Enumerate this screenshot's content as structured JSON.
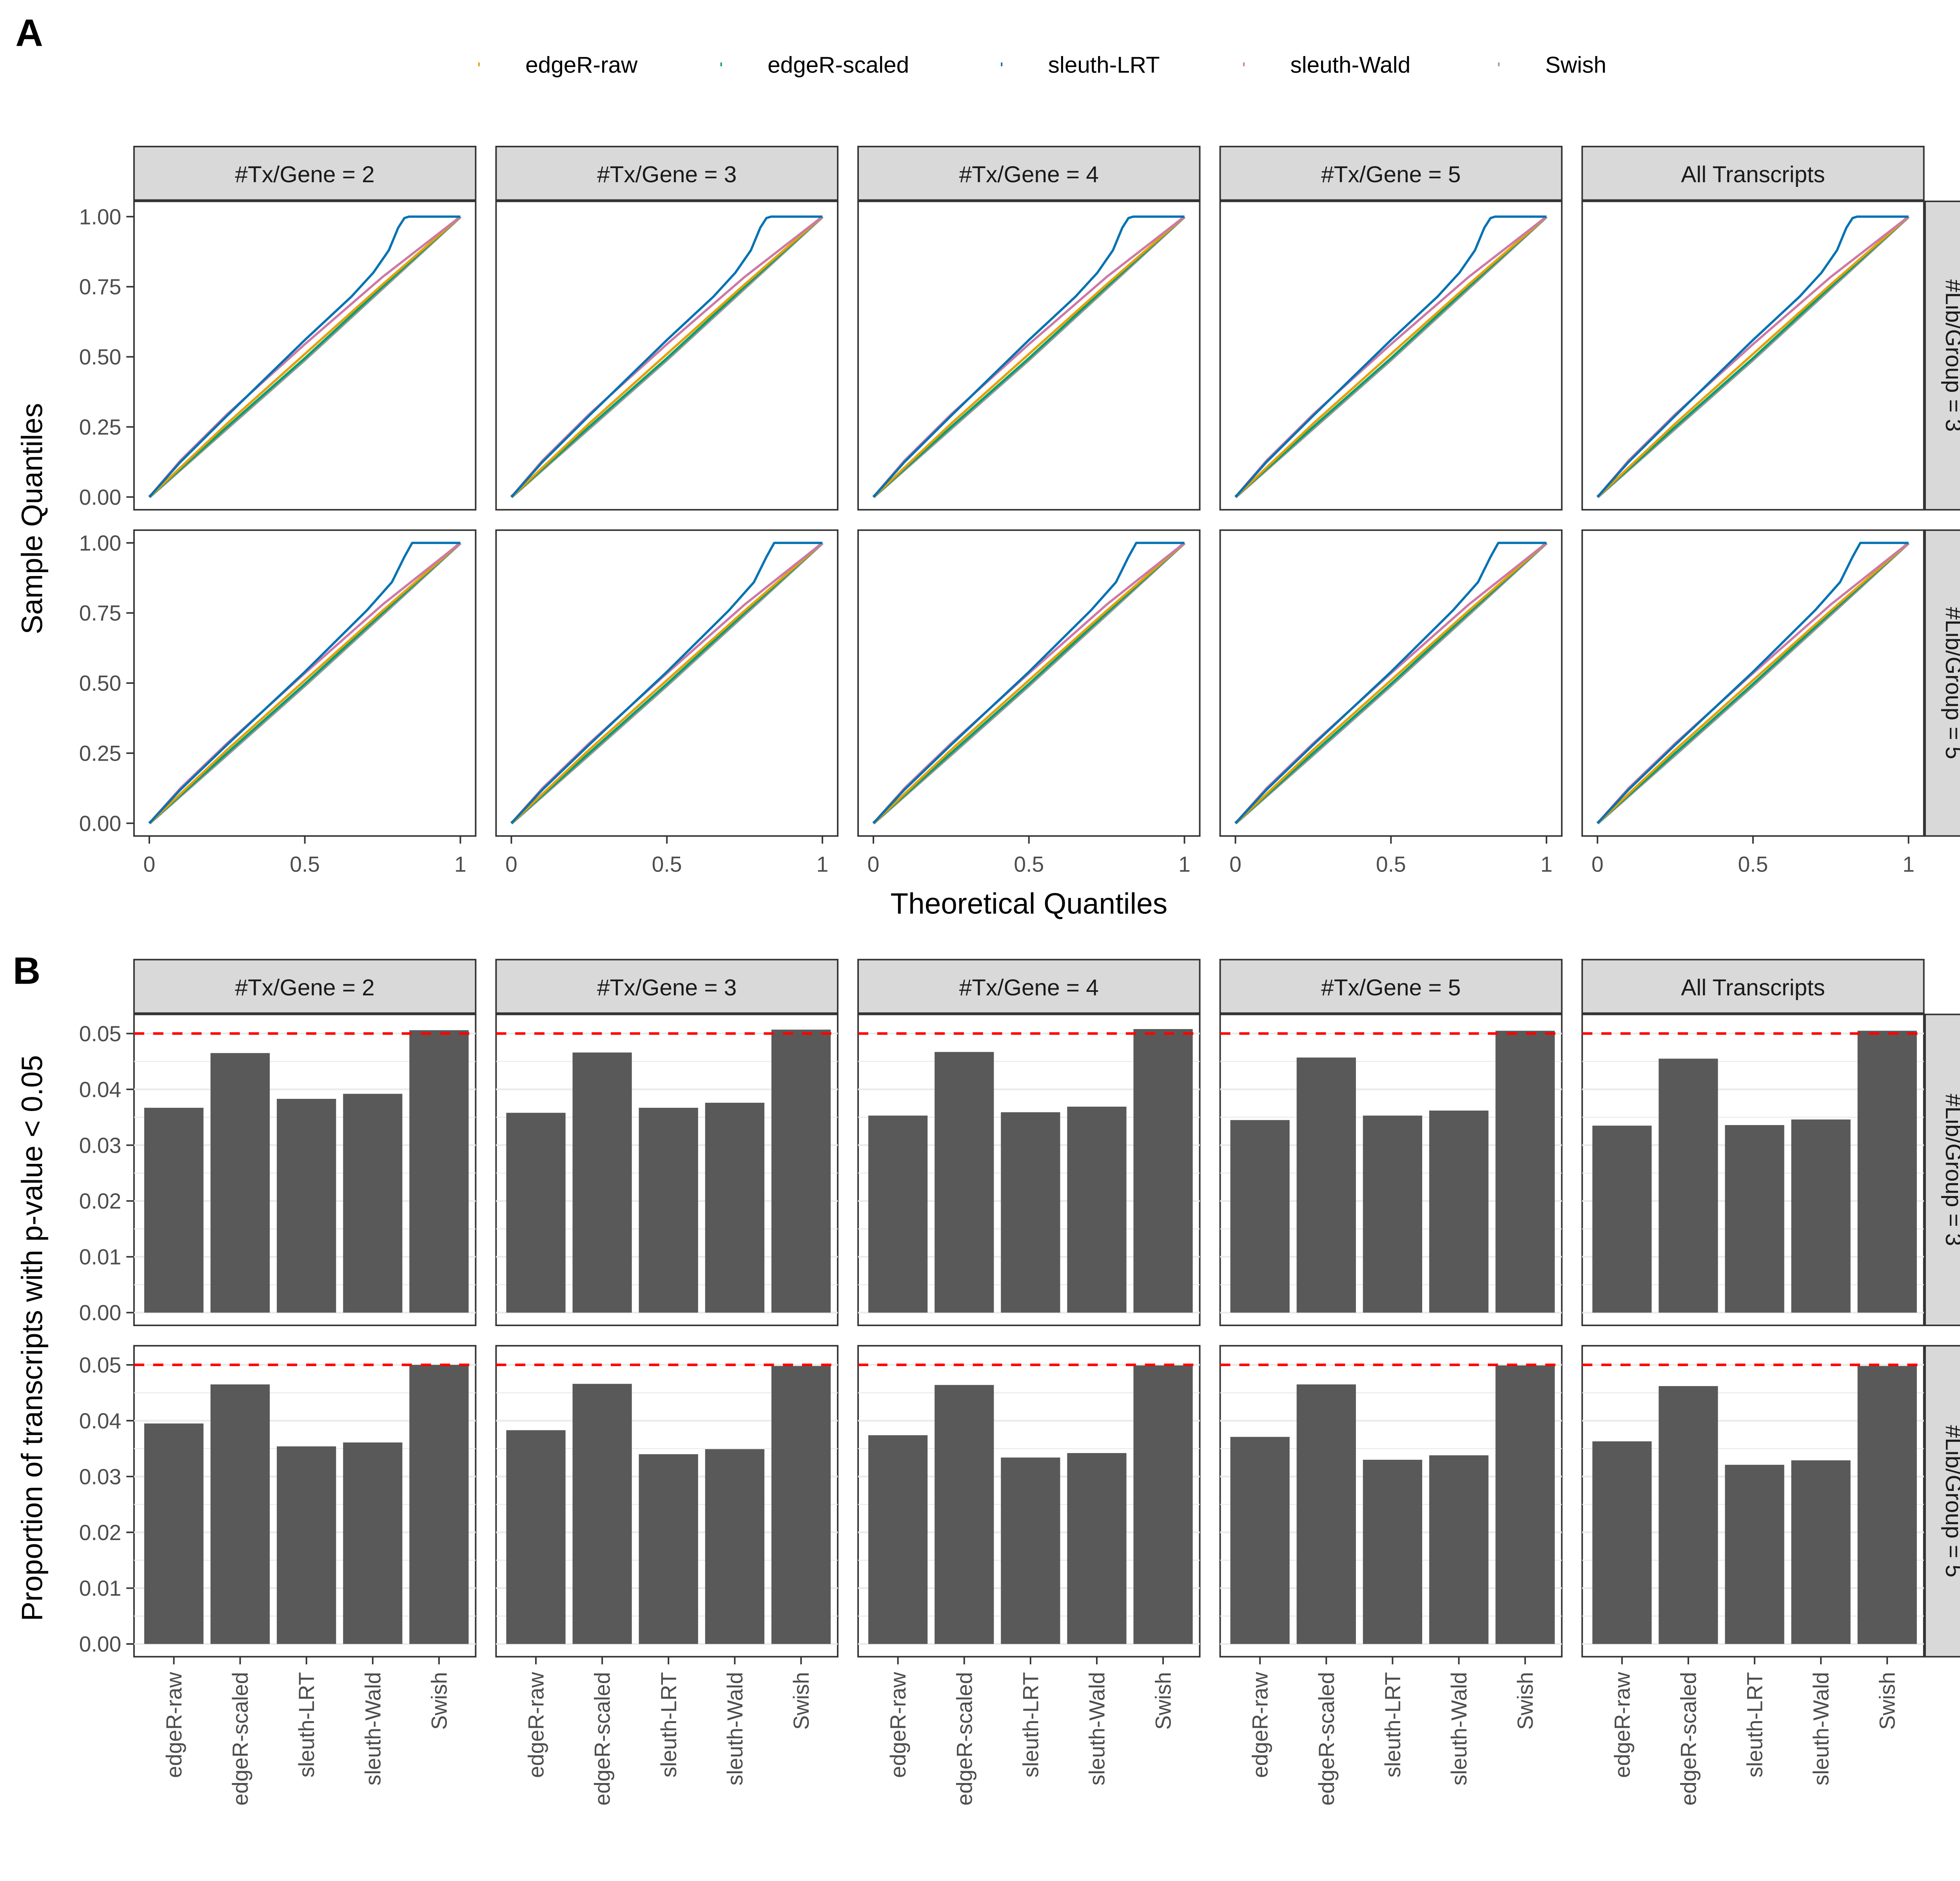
{
  "panel_tags": [
    "A",
    "B"
  ],
  "methods": [
    "edgeR-raw",
    "edgeR-scaled",
    "sleuth-LRT",
    "sleuth-Wald",
    "Swish"
  ],
  "colors": {
    "edgeR-raw": "#E69F00",
    "edgeR-scaled": "#009E73",
    "sleuth-LRT": "#0072B2",
    "sleuth-Wald": "#CC79A7",
    "Swish": "#999999",
    "bar": "#595959",
    "reference_line": "#FF0000"
  },
  "column_strips": [
    "#Tx/Gene = 2",
    "#Tx/Gene = 3",
    "#Tx/Gene = 4",
    "#Tx/Gene = 5",
    "All Transcripts"
  ],
  "row_strips": [
    "#Lib/Group = 3",
    "#Lib/Group = 5"
  ],
  "chart_data": [
    {
      "type": "line",
      "panel": "A",
      "legend_position": "top",
      "xlabel": "Theoretical Quantiles",
      "ylabel": "Sample Quantiles",
      "xlim": [
        0,
        1
      ],
      "ylim": [
        0,
        1
      ],
      "x_ticks": [
        "0",
        "0.5",
        "1"
      ],
      "y_ticks": [
        "0.00",
        "0.25",
        "0.50",
        "0.75",
        "1.00"
      ],
      "series_by_row": [
        [
          {
            "name": "edgeR-raw",
            "points": [
              [
                0,
                0
              ],
              [
                0.1,
                0.105
              ],
              [
                0.25,
                0.262
              ],
              [
                0.5,
                0.51
              ],
              [
                0.75,
                0.758
              ],
              [
                1,
                1
              ]
            ]
          },
          {
            "name": "edgeR-scaled",
            "points": [
              [
                0,
                0
              ],
              [
                0.25,
                0.25
              ],
              [
                0.5,
                0.495
              ],
              [
                0.75,
                0.75
              ],
              [
                1,
                1
              ]
            ]
          },
          {
            "name": "sleuth-LRT",
            "points": [
              [
                0,
                0
              ],
              [
                0.1,
                0.125
              ],
              [
                0.25,
                0.29
              ],
              [
                0.5,
                0.56
              ],
              [
                0.65,
                0.715
              ],
              [
                0.72,
                0.8
              ],
              [
                0.77,
                0.88
              ],
              [
                0.8,
                0.96
              ],
              [
                0.82,
                0.995
              ],
              [
                0.835,
                1
              ],
              [
                1,
                1
              ]
            ]
          },
          {
            "name": "sleuth-Wald",
            "points": [
              [
                0,
                0
              ],
              [
                0.1,
                0.13
              ],
              [
                0.25,
                0.295
              ],
              [
                0.5,
                0.545
              ],
              [
                0.75,
                0.785
              ],
              [
                1,
                1
              ]
            ]
          },
          {
            "name": "Swish",
            "points": [
              [
                0,
                0
              ],
              [
                0.25,
                0.245
              ],
              [
                0.5,
                0.49
              ],
              [
                0.75,
                0.745
              ],
              [
                1,
                1
              ]
            ]
          }
        ],
        [
          {
            "name": "edgeR-raw",
            "points": [
              [
                0,
                0
              ],
              [
                0.25,
                0.262
              ],
              [
                0.5,
                0.51
              ],
              [
                0.75,
                0.758
              ],
              [
                1,
                1
              ]
            ]
          },
          {
            "name": "edgeR-scaled",
            "points": [
              [
                0,
                0
              ],
              [
                0.25,
                0.25
              ],
              [
                0.5,
                0.497
              ],
              [
                0.75,
                0.75
              ],
              [
                1,
                1
              ]
            ]
          },
          {
            "name": "sleuth-LRT",
            "points": [
              [
                0,
                0
              ],
              [
                0.1,
                0.12
              ],
              [
                0.25,
                0.28
              ],
              [
                0.5,
                0.54
              ],
              [
                0.7,
                0.76
              ],
              [
                0.78,
                0.86
              ],
              [
                0.82,
                0.95
              ],
              [
                0.845,
                1
              ],
              [
                1,
                1
              ]
            ]
          },
          {
            "name": "sleuth-Wald",
            "points": [
              [
                0,
                0
              ],
              [
                0.1,
                0.125
              ],
              [
                0.25,
                0.285
              ],
              [
                0.5,
                0.535
              ],
              [
                0.75,
                0.78
              ],
              [
                1,
                1
              ]
            ]
          },
          {
            "name": "Swish",
            "points": [
              [
                0,
                0
              ],
              [
                0.25,
                0.245
              ],
              [
                0.5,
                0.492
              ],
              [
                0.75,
                0.745
              ],
              [
                1,
                1
              ]
            ]
          }
        ]
      ]
    },
    {
      "type": "bar",
      "panel": "B",
      "ylabel": "Proportion of transcripts with p-value < 0.05",
      "categories": [
        "edgeR-raw",
        "edgeR-scaled",
        "sleuth-LRT",
        "sleuth-Wald",
        "Swish"
      ],
      "ylim": [
        0,
        0.05
      ],
      "y_ticks": [
        "0.00",
        "0.01",
        "0.02",
        "0.03",
        "0.04",
        "0.05"
      ],
      "reference_line": 0.05,
      "values": [
        [
          [
            0.0367,
            0.0465,
            0.0383,
            0.0392,
            0.0506
          ],
          [
            0.0358,
            0.0466,
            0.0367,
            0.0376,
            0.0507
          ],
          [
            0.0353,
            0.0467,
            0.0359,
            0.0369,
            0.0508
          ],
          [
            0.0345,
            0.0457,
            0.0353,
            0.0362,
            0.0505
          ],
          [
            0.0335,
            0.0455,
            0.0336,
            0.0346,
            0.0505
          ]
        ],
        [
          [
            0.0395,
            0.0465,
            0.0354,
            0.0361,
            0.05
          ],
          [
            0.0383,
            0.0466,
            0.034,
            0.0349,
            0.0498
          ],
          [
            0.0374,
            0.0464,
            0.0334,
            0.0342,
            0.0499
          ],
          [
            0.0371,
            0.0465,
            0.033,
            0.0338,
            0.0499
          ],
          [
            0.0363,
            0.0462,
            0.0321,
            0.0329,
            0.0498
          ]
        ]
      ]
    }
  ]
}
